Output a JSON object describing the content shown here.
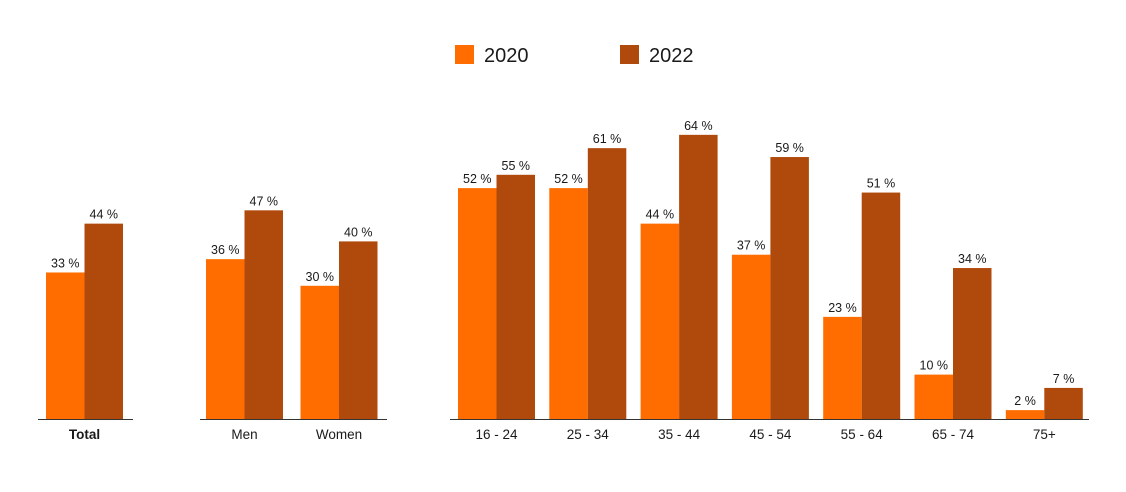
{
  "chart_data": {
    "type": "bar",
    "ylim": [
      0,
      70
    ],
    "grid": false,
    "legend_position": "top-center",
    "value_suffix": " %",
    "colors": {
      "2020": "#ff6d00",
      "2022": "#b04a0c"
    },
    "series": [
      {
        "name": "2020",
        "color": "#ff6d00"
      },
      {
        "name": "2022",
        "color": "#b04a0c"
      }
    ],
    "groups": [
      {
        "categories": [
          "Total"
        ],
        "bold_labels": true,
        "values": {
          "2020": [
            33
          ],
          "2022": [
            44
          ]
        }
      },
      {
        "categories": [
          "Men",
          "Women"
        ],
        "bold_labels": false,
        "values": {
          "2020": [
            36,
            30
          ],
          "2022": [
            47,
            40
          ]
        }
      },
      {
        "categories": [
          "16 - 24",
          "25 - 34",
          "35 - 44",
          "45 - 54",
          "55 - 64",
          "65 - 74",
          "75+"
        ],
        "bold_labels": false,
        "values": {
          "2020": [
            52,
            52,
            44,
            37,
            23,
            10,
            2
          ],
          "2022": [
            55,
            61,
            64,
            59,
            51,
            34,
            7
          ]
        }
      }
    ]
  }
}
